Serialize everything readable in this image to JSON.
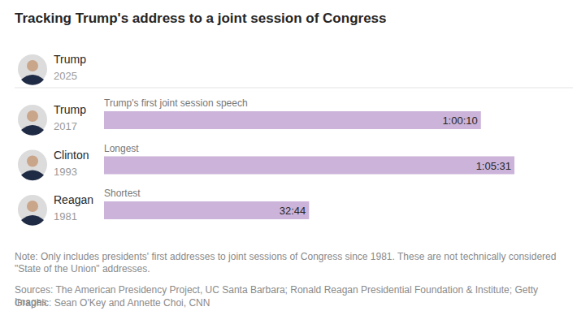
{
  "chart_data": {
    "type": "bar",
    "orientation": "horizontal",
    "title": "Tracking Trump's address to a joint session of Congress",
    "categories": [
      "Trump",
      "Trump",
      "Clinton",
      "Reagan"
    ],
    "years": [
      2025,
      2017,
      1993,
      1981
    ],
    "annotations": [
      null,
      "Trump's first joint session speech",
      "Longest",
      "Shortest"
    ],
    "values": [
      null,
      3610,
      3931,
      1964
    ],
    "value_labels": [
      null,
      "1:00:10",
      "1:05:31",
      "32:44"
    ],
    "color": "#cbb3d9",
    "xlim": [
      0,
      3931
    ],
    "data_labels": true,
    "tick_labels": false,
    "note": "Note: Only includes presidents' first addresses to joint sessions of Congress since 1981. These are not technically considered \"State of the Union\" addresses.",
    "sources": "Sources: The American Presidency Project, UC Santa Barbara; Ronald Reagan Presidential Foundation & Institute; Getty Images",
    "credit": "Graphic: Sean O'Key and Annette Choi, CNN"
  }
}
